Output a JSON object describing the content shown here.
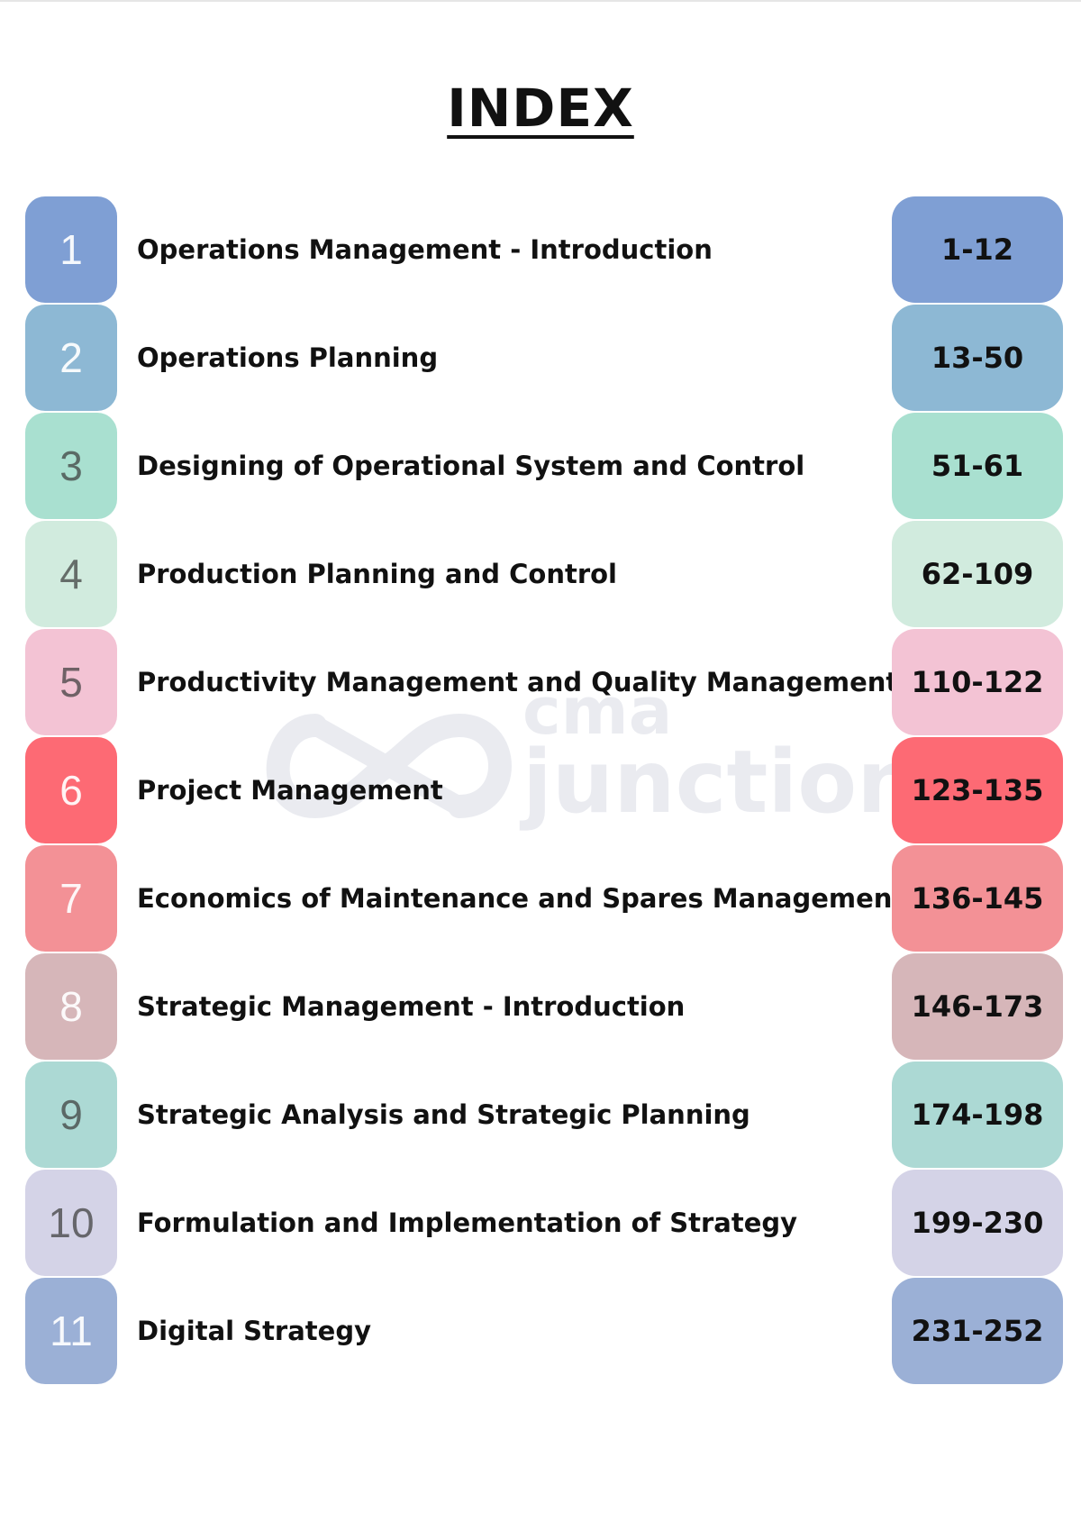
{
  "title": "INDEX",
  "watermark": {
    "line1": "cma",
    "line2": "junction"
  },
  "entries": [
    {
      "number": "1",
      "title": "Operations Management - Introduction",
      "pages": "1-12",
      "color": "#7f9fd4"
    },
    {
      "number": "2",
      "title": "Operations Planning",
      "pages": "13-50",
      "color": "#8db8d4"
    },
    {
      "number": "3",
      "title": "Designing of Operational System and Control",
      "pages": "51-61",
      "color": "#a9e0d0"
    },
    {
      "number": "4",
      "title": "Production Planning and Control",
      "pages": "62-109",
      "color": "#d1ebde"
    },
    {
      "number": "5",
      "title": "Productivity Management and Quality Management",
      "pages": "110-122",
      "color": "#f3c3d4"
    },
    {
      "number": "6",
      "title": "Project Management",
      "pages": "123-135",
      "color": "#fd6a74"
    },
    {
      "number": "7",
      "title": "Economics of Maintenance and Spares Management",
      "pages": "136-145",
      "color": "#f39196"
    },
    {
      "number": "8",
      "title": "Strategic Management - Introduction",
      "pages": "146-173",
      "color": "#d6b6b9"
    },
    {
      "number": "9",
      "title": "Strategic Analysis and Strategic Planning",
      "pages": "174-198",
      "color": "#acd9d4"
    },
    {
      "number": "10",
      "title": "Formulation and Implementation of Strategy",
      "pages": "199-230",
      "color": "#d4d3e7"
    },
    {
      "number": "11",
      "title": "Digital Strategy",
      "pages": "231-252",
      "color": "#9bb0d6"
    }
  ]
}
